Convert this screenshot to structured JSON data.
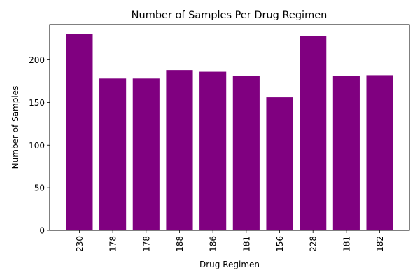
{
  "chart_data": {
    "type": "bar",
    "title": "Number of Samples Per Drug Regimen",
    "xlabel": "Drug Regimen",
    "ylabel": "Number of Samples",
    "categories": [
      "230",
      "178",
      "178",
      "188",
      "186",
      "181",
      "156",
      "228",
      "181",
      "182"
    ],
    "values": [
      230,
      178,
      178,
      188,
      186,
      181,
      156,
      228,
      181,
      182
    ],
    "ylim": [
      0,
      241.5
    ],
    "yticks": [
      0,
      50,
      100,
      150,
      200
    ],
    "bar_color": "#800080",
    "grid": false,
    "x_tick_rotation": "vertical"
  }
}
